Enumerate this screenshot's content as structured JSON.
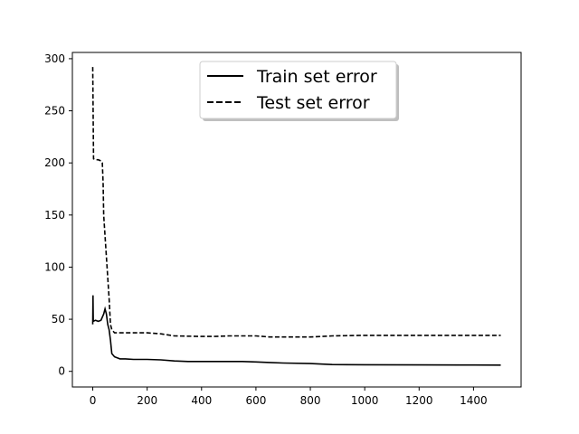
{
  "chart_data": {
    "type": "line",
    "title": "",
    "xlabel": "",
    "ylabel": "",
    "xlim": [
      -75,
      1575
    ],
    "ylim": [
      -15,
      306
    ],
    "grid": false,
    "legend_placement": "top-center",
    "x_ticks": [
      0,
      200,
      400,
      600,
      800,
      1000,
      1200,
      1400
    ],
    "y_ticks": [
      0,
      50,
      100,
      150,
      200,
      250,
      300
    ],
    "x_tick_labels": [
      "0",
      "200",
      "400",
      "600",
      "800",
      "1000",
      "1200",
      "1400"
    ],
    "y_tick_labels": [
      "0",
      "50",
      "100",
      "150",
      "200",
      "250",
      "300"
    ],
    "colors": {
      "series": "#000000",
      "legend_border": "#cccccc",
      "axes": "#000000"
    },
    "series": [
      {
        "name": "Train set error",
        "style": "solid",
        "points": [
          [
            0,
            45
          ],
          [
            1,
            73
          ],
          [
            2,
            48
          ],
          [
            10,
            49
          ],
          [
            20,
            48
          ],
          [
            30,
            49
          ],
          [
            40,
            55
          ],
          [
            45,
            60
          ],
          [
            50,
            55
          ],
          [
            55,
            45
          ],
          [
            60,
            40
          ],
          [
            65,
            30
          ],
          [
            70,
            17
          ],
          [
            80,
            14
          ],
          [
            90,
            13
          ],
          [
            100,
            12
          ],
          [
            120,
            12
          ],
          [
            150,
            11.5
          ],
          [
            200,
            11.5
          ],
          [
            250,
            11
          ],
          [
            300,
            10
          ],
          [
            350,
            9.5
          ],
          [
            400,
            9.5
          ],
          [
            450,
            9.5
          ],
          [
            500,
            9.5
          ],
          [
            550,
            9.5
          ],
          [
            600,
            9
          ],
          [
            650,
            8.5
          ],
          [
            700,
            8
          ],
          [
            800,
            7.5
          ],
          [
            880,
            6.5
          ],
          [
            1000,
            6.3
          ],
          [
            1200,
            6.2
          ],
          [
            1400,
            6.1
          ],
          [
            1500,
            6
          ]
        ]
      },
      {
        "name": "Test set error",
        "style": "dashed",
        "points": [
          [
            0,
            292
          ],
          [
            3,
            204
          ],
          [
            10,
            203
          ],
          [
            20,
            203
          ],
          [
            30,
            202
          ],
          [
            35,
            200
          ],
          [
            38,
            180
          ],
          [
            40,
            150
          ],
          [
            45,
            130
          ],
          [
            50,
            110
          ],
          [
            55,
            90
          ],
          [
            60,
            70
          ],
          [
            65,
            45
          ],
          [
            70,
            40
          ],
          [
            80,
            37
          ],
          [
            100,
            37
          ],
          [
            150,
            37
          ],
          [
            200,
            37
          ],
          [
            250,
            36
          ],
          [
            300,
            34
          ],
          [
            400,
            33.5
          ],
          [
            450,
            33.5
          ],
          [
            500,
            34
          ],
          [
            550,
            34
          ],
          [
            600,
            34
          ],
          [
            650,
            33
          ],
          [
            700,
            33
          ],
          [
            800,
            33
          ],
          [
            880,
            34
          ],
          [
            1000,
            34.5
          ],
          [
            1200,
            34.5
          ],
          [
            1400,
            34.5
          ],
          [
            1500,
            34.5
          ]
        ]
      }
    ]
  }
}
